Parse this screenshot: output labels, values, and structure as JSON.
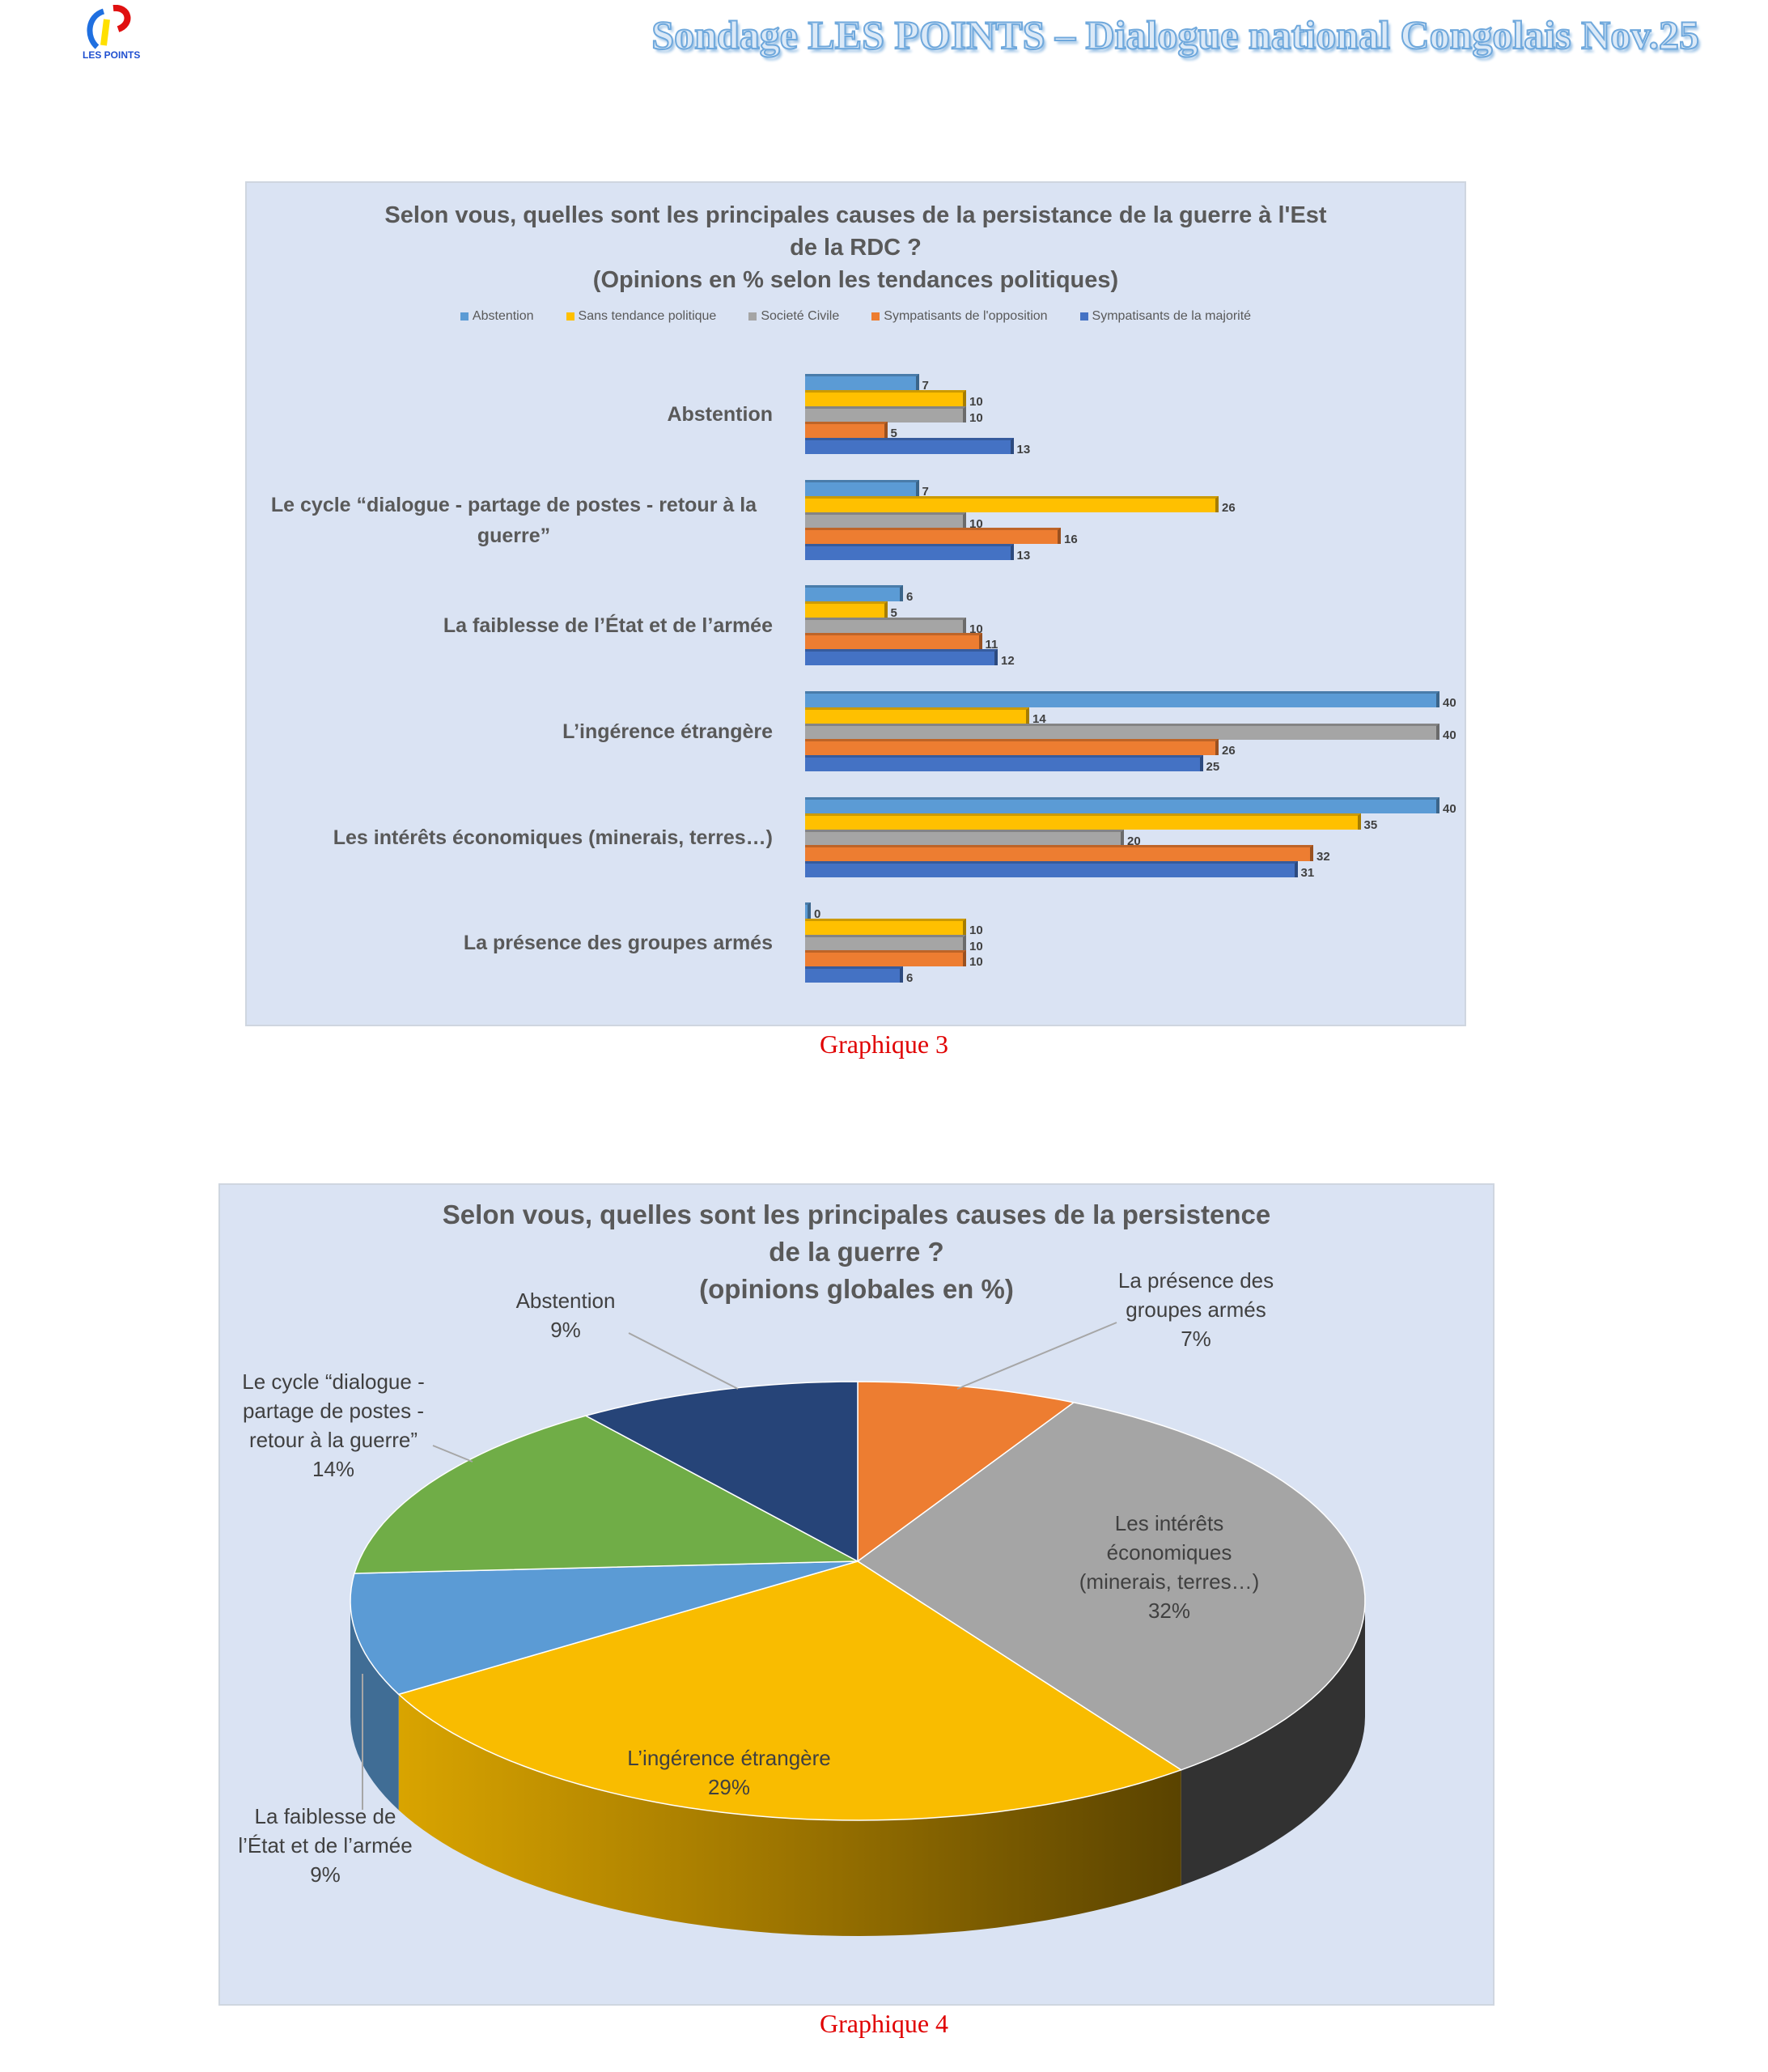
{
  "header": {
    "title": "Sondage LES POINTS – Dialogue national Congolais  Nov.25",
    "logo_text": "LES POINTS"
  },
  "chart_data": [
    {
      "type": "bar",
      "orientation": "horizontal",
      "title_lines": [
        "Selon vous, quelles sont les principales causes de la persistance de la guerre à l'Est",
        "de la RDC ?",
        "(Opinions en % selon les tendances politiques)"
      ],
      "legend_position": "top",
      "categories": [
        "Abstention",
        "Le cycle “dialogue -  partage de postes - retour à la guerre”",
        "La faiblesse de l’État et de l’armée",
        "L’ingérence étrangère",
        "Les intérêts économiques (minerais, terres…)",
        "La présence des groupes armés"
      ],
      "series": [
        {
          "name": "Abstention",
          "color": "#5b9bd5",
          "values": [
            7,
            7,
            6,
            40,
            40,
            0
          ]
        },
        {
          "name": "Sans tendance politique",
          "color": "#ffc000",
          "values": [
            10,
            26,
            5,
            14,
            35,
            10
          ]
        },
        {
          "name": "Societé Civile",
          "color": "#a5a5a5",
          "values": [
            10,
            10,
            10,
            40,
            20,
            10
          ]
        },
        {
          "name": "Sympatisants de l'opposition",
          "color": "#ed7d31",
          "values": [
            5,
            16,
            11,
            26,
            32,
            10
          ]
        },
        {
          "name": "Sympatisants de la majorité",
          "color": "#4472c4",
          "values": [
            13,
            13,
            12,
            25,
            31,
            6
          ]
        }
      ],
      "xlim": [
        0,
        40
      ],
      "grid": false,
      "caption": "Graphique 3"
    },
    {
      "type": "pie",
      "three_d": true,
      "title_lines": [
        "Selon vous, quelles sont les principales causes de la persistence",
        "de la guerre ?",
        "(opinions globales en %)"
      ],
      "slices": [
        {
          "label_lines": [
            "La présence des",
            "groupes armés"
          ],
          "value": 7,
          "pct": "7%",
          "color": "#ed7d31"
        },
        {
          "label_lines": [
            "Les intérêts",
            "économiques",
            "(minerais, terres…)"
          ],
          "value": 32,
          "pct": "32%",
          "color": "#a5a5a5"
        },
        {
          "label_lines": [
            "L’ingérence étrangère"
          ],
          "value": 29,
          "pct": "29%",
          "color": "#f9bc00"
        },
        {
          "label_lines": [
            "La faiblesse de",
            "l’État et de l’armée"
          ],
          "value": 9,
          "pct": "9%",
          "color": "#5b9bd5"
        },
        {
          "label_lines": [
            "Le cycle “dialogue -",
            "partage de postes -",
            "retour à la guerre”"
          ],
          "value": 14,
          "pct": "14%",
          "color": "#70ad47"
        },
        {
          "label_lines": [
            "Abstention"
          ],
          "value": 9,
          "pct": "9%",
          "color": "#264478"
        }
      ],
      "caption": "Graphique 4"
    }
  ]
}
